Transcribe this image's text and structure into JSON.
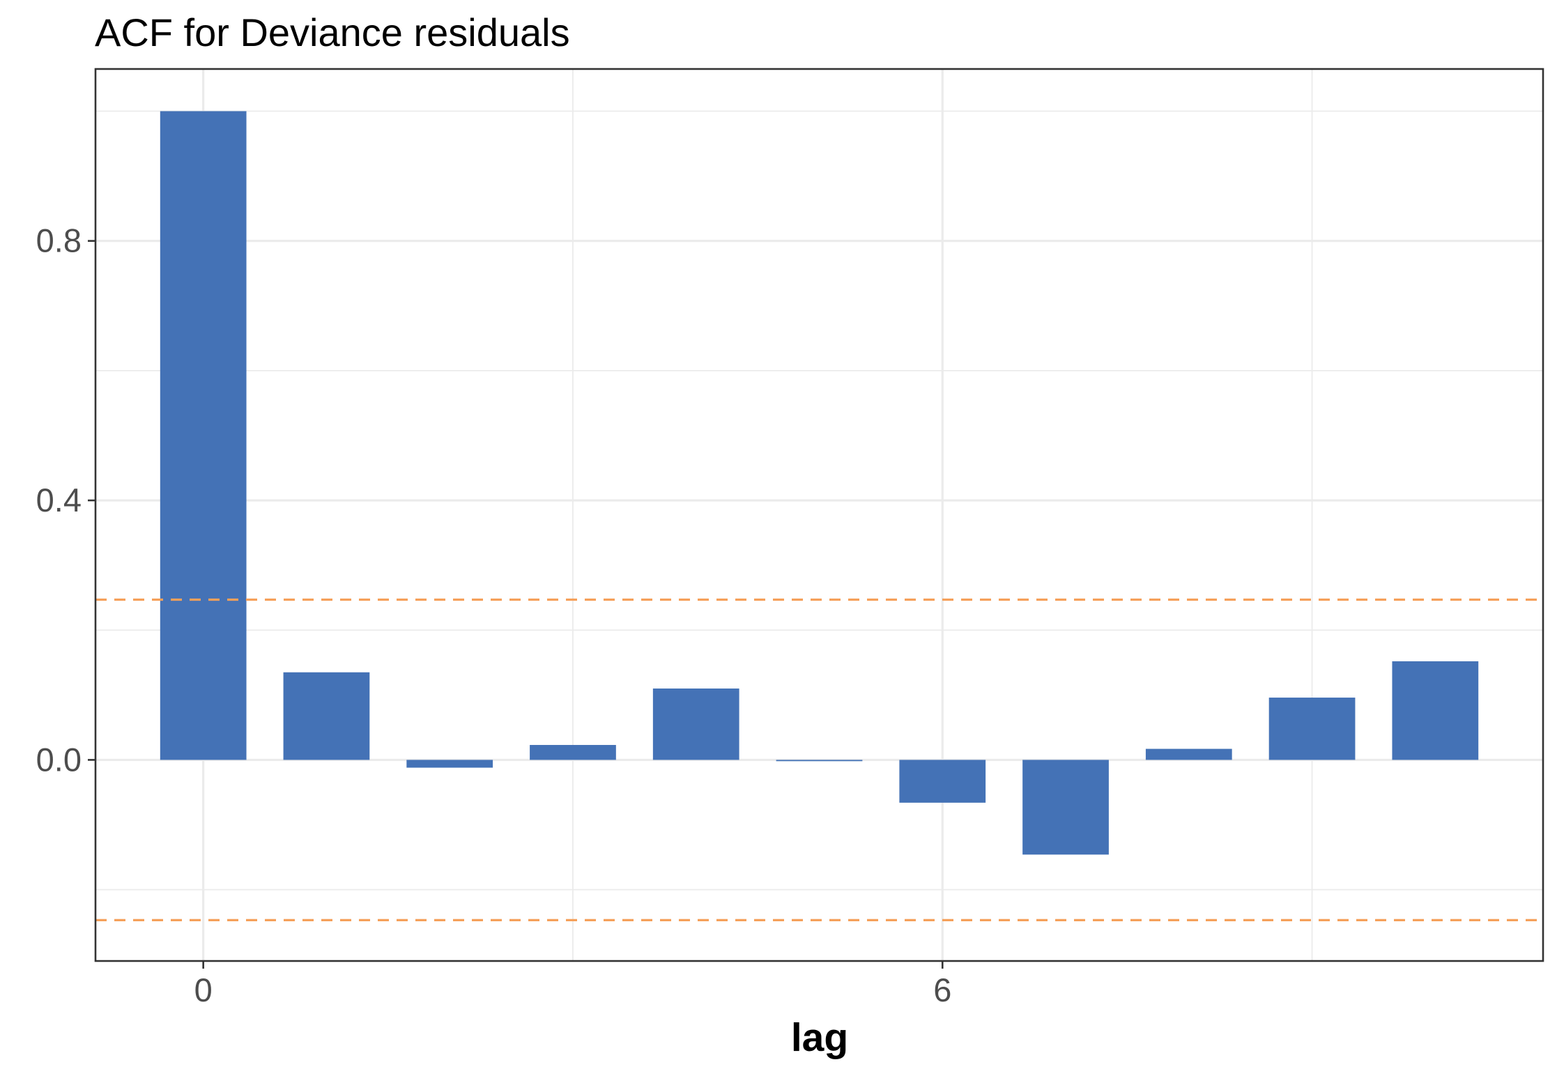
{
  "chart_data": {
    "type": "bar",
    "title": "ACF for Deviance residuals",
    "xlabel": "lag",
    "ylabel": "",
    "x": [
      0,
      1,
      2,
      3,
      4,
      5,
      6,
      7,
      8,
      9,
      10
    ],
    "values": [
      1.0,
      0.135,
      -0.012,
      0.023,
      0.11,
      -0.002,
      -0.066,
      -0.146,
      0.017,
      0.096,
      0.152
    ],
    "xlim": [
      -0.875,
      10.875
    ],
    "ylim": [
      -0.31,
      1.065
    ],
    "x_ticks": [
      0,
      6
    ],
    "x_tick_labels": [
      "0",
      "6"
    ],
    "x_minor_breaks": [
      3,
      9
    ],
    "y_ticks": [
      0.0,
      0.4,
      0.8
    ],
    "y_tick_labels": [
      "0.0",
      "0.4",
      "0.8"
    ],
    "y_minor_breaks": [
      -0.2,
      0.2,
      0.6,
      1.0
    ],
    "confidence_bounds": [
      0.247,
      -0.247
    ],
    "bar_width": 0.7,
    "grid": true,
    "legend": "none",
    "colors": {
      "bar": "#4472b6",
      "bounds": "#f5a05a",
      "grid": "#ebebeb",
      "panel_border": "#333333"
    }
  }
}
